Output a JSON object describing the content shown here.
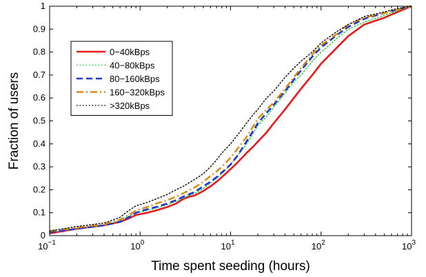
{
  "chart_data": {
    "type": "line",
    "title": "",
    "xlabel": "Time spent seeding (hours)",
    "ylabel": "Fraction of users",
    "xscale": "log",
    "xlim": [
      0.1,
      1000
    ],
    "ylim": [
      0,
      1
    ],
    "x_ticks": [
      {
        "value": 0.1,
        "base": "10",
        "exp": "−1"
      },
      {
        "value": 1,
        "base": "10",
        "exp": "0"
      },
      {
        "value": 10,
        "base": "10",
        "exp": "1"
      },
      {
        "value": 100,
        "base": "10",
        "exp": "2"
      },
      {
        "value": 1000,
        "base": "10",
        "exp": "3"
      }
    ],
    "y_ticks": [
      {
        "value": 0,
        "label": "0"
      },
      {
        "value": 0.1,
        "label": "0.1"
      },
      {
        "value": 0.2,
        "label": "0.2"
      },
      {
        "value": 0.3,
        "label": "0.3"
      },
      {
        "value": 0.4,
        "label": "0.4"
      },
      {
        "value": 0.5,
        "label": "0.5"
      },
      {
        "value": 0.6,
        "label": "0.6"
      },
      {
        "value": 0.7,
        "label": "0.7"
      },
      {
        "value": 0.8,
        "label": "0.8"
      },
      {
        "value": 0.9,
        "label": "0.9"
      },
      {
        "value": 1,
        "label": "1"
      }
    ],
    "grid": false,
    "legend_position": "top-left",
    "series": [
      {
        "name": "0−40kBps",
        "color": "#e8191c",
        "style": "solid",
        "points": [
          [
            0.1,
            0.01
          ],
          [
            0.2,
            0.03
          ],
          [
            0.4,
            0.045
          ],
          [
            0.6,
            0.06
          ],
          [
            0.75,
            0.075
          ],
          [
            0.9,
            0.09
          ],
          [
            1.2,
            0.1
          ],
          [
            1.5,
            0.11
          ],
          [
            2,
            0.125
          ],
          [
            2.5,
            0.14
          ],
          [
            3,
            0.16
          ],
          [
            3.5,
            0.17
          ],
          [
            4,
            0.175
          ],
          [
            5,
            0.195
          ],
          [
            6,
            0.215
          ],
          [
            7,
            0.235
          ],
          [
            8,
            0.255
          ],
          [
            10,
            0.29
          ],
          [
            12,
            0.32
          ],
          [
            15,
            0.36
          ],
          [
            18,
            0.39
          ],
          [
            20,
            0.41
          ],
          [
            25,
            0.45
          ],
          [
            30,
            0.49
          ],
          [
            40,
            0.55
          ],
          [
            50,
            0.6
          ],
          [
            60,
            0.64
          ],
          [
            80,
            0.7
          ],
          [
            100,
            0.75
          ],
          [
            150,
            0.82
          ],
          [
            200,
            0.87
          ],
          [
            300,
            0.92
          ],
          [
            500,
            0.95
          ],
          [
            700,
            0.975
          ],
          [
            1000,
            1.0
          ]
        ]
      },
      {
        "name": "40−80kBps",
        "color": "#2fcb2f",
        "style": "dotted",
        "points": [
          [
            0.1,
            0.015
          ],
          [
            0.2,
            0.03
          ],
          [
            0.4,
            0.045
          ],
          [
            0.6,
            0.065
          ],
          [
            0.75,
            0.085
          ],
          [
            0.9,
            0.1
          ],
          [
            1.2,
            0.11
          ],
          [
            1.5,
            0.12
          ],
          [
            2,
            0.135
          ],
          [
            2.5,
            0.15
          ],
          [
            3,
            0.165
          ],
          [
            4,
            0.185
          ],
          [
            5,
            0.205
          ],
          [
            6,
            0.23
          ],
          [
            7,
            0.25
          ],
          [
            8,
            0.27
          ],
          [
            10,
            0.31
          ],
          [
            12,
            0.35
          ],
          [
            15,
            0.4
          ],
          [
            18,
            0.45
          ],
          [
            20,
            0.48
          ],
          [
            25,
            0.52
          ],
          [
            30,
            0.56
          ],
          [
            40,
            0.62
          ],
          [
            50,
            0.67
          ],
          [
            60,
            0.7
          ],
          [
            80,
            0.76
          ],
          [
            100,
            0.8
          ],
          [
            150,
            0.86
          ],
          [
            200,
            0.9
          ],
          [
            300,
            0.93
          ],
          [
            500,
            0.96
          ],
          [
            700,
            0.98
          ],
          [
            1000,
            1.0
          ]
        ]
      },
      {
        "name": "80−160kBps",
        "color": "#1f35d6",
        "style": "dashed",
        "points": [
          [
            0.1,
            0.015
          ],
          [
            0.2,
            0.03
          ],
          [
            0.4,
            0.045
          ],
          [
            0.6,
            0.06
          ],
          [
            0.75,
            0.08
          ],
          [
            0.9,
            0.1
          ],
          [
            1.2,
            0.115
          ],
          [
            1.5,
            0.125
          ],
          [
            2,
            0.14
          ],
          [
            2.5,
            0.155
          ],
          [
            3,
            0.17
          ],
          [
            4,
            0.19
          ],
          [
            5,
            0.215
          ],
          [
            6,
            0.235
          ],
          [
            7,
            0.255
          ],
          [
            8,
            0.275
          ],
          [
            10,
            0.31
          ],
          [
            12,
            0.35
          ],
          [
            15,
            0.41
          ],
          [
            18,
            0.46
          ],
          [
            20,
            0.49
          ],
          [
            25,
            0.535
          ],
          [
            30,
            0.57
          ],
          [
            40,
            0.63
          ],
          [
            50,
            0.68
          ],
          [
            60,
            0.72
          ],
          [
            80,
            0.78
          ],
          [
            100,
            0.82
          ],
          [
            150,
            0.875
          ],
          [
            200,
            0.91
          ],
          [
            300,
            0.945
          ],
          [
            500,
            0.97
          ],
          [
            700,
            0.985
          ],
          [
            1000,
            1.0
          ]
        ]
      },
      {
        "name": "160−320kBps",
        "color": "#d6890a",
        "style": "dashdot",
        "points": [
          [
            0.1,
            0.02
          ],
          [
            0.2,
            0.035
          ],
          [
            0.4,
            0.05
          ],
          [
            0.6,
            0.07
          ],
          [
            0.75,
            0.09
          ],
          [
            0.9,
            0.11
          ],
          [
            1.2,
            0.125
          ],
          [
            1.5,
            0.14
          ],
          [
            2,
            0.155
          ],
          [
            2.5,
            0.17
          ],
          [
            3,
            0.185
          ],
          [
            4,
            0.21
          ],
          [
            5,
            0.235
          ],
          [
            6,
            0.26
          ],
          [
            7,
            0.28
          ],
          [
            8,
            0.3
          ],
          [
            10,
            0.34
          ],
          [
            12,
            0.38
          ],
          [
            15,
            0.43
          ],
          [
            18,
            0.48
          ],
          [
            20,
            0.51
          ],
          [
            25,
            0.55
          ],
          [
            30,
            0.58
          ],
          [
            40,
            0.64
          ],
          [
            50,
            0.69
          ],
          [
            60,
            0.73
          ],
          [
            80,
            0.79
          ],
          [
            100,
            0.83
          ],
          [
            150,
            0.88
          ],
          [
            200,
            0.92
          ],
          [
            300,
            0.95
          ],
          [
            500,
            0.97
          ],
          [
            700,
            0.985
          ],
          [
            1000,
            1.0
          ]
        ]
      },
      {
        "name": ">320kBps",
        "color": "#111111",
        "style": "dotted",
        "points": [
          [
            0.1,
            0.02
          ],
          [
            0.2,
            0.04
          ],
          [
            0.4,
            0.055
          ],
          [
            0.6,
            0.08
          ],
          [
            0.75,
            0.11
          ],
          [
            0.9,
            0.13
          ],
          [
            1.2,
            0.145
          ],
          [
            1.5,
            0.16
          ],
          [
            2,
            0.18
          ],
          [
            2.5,
            0.2
          ],
          [
            3,
            0.215
          ],
          [
            4,
            0.245
          ],
          [
            5,
            0.27
          ],
          [
            6,
            0.3
          ],
          [
            7,
            0.33
          ],
          [
            8,
            0.36
          ],
          [
            10,
            0.4
          ],
          [
            12,
            0.44
          ],
          [
            15,
            0.49
          ],
          [
            18,
            0.53
          ],
          [
            20,
            0.55
          ],
          [
            25,
            0.6
          ],
          [
            30,
            0.63
          ],
          [
            40,
            0.69
          ],
          [
            50,
            0.73
          ],
          [
            60,
            0.76
          ],
          [
            80,
            0.8
          ],
          [
            100,
            0.84
          ],
          [
            150,
            0.89
          ],
          [
            200,
            0.92
          ],
          [
            300,
            0.955
          ],
          [
            500,
            0.975
          ],
          [
            700,
            0.99
          ],
          [
            1000,
            1.0
          ]
        ]
      }
    ]
  }
}
